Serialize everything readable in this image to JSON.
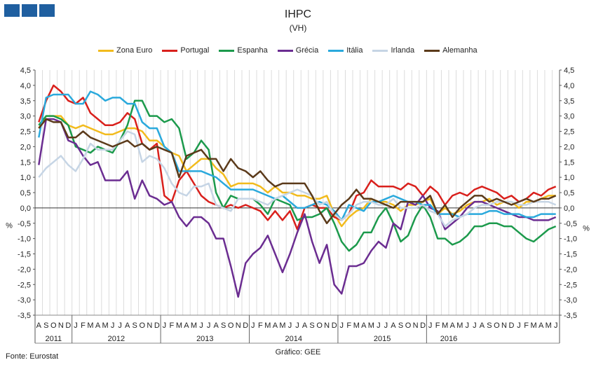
{
  "title": "IHPC",
  "subtitle": "(VH)",
  "source": "Fonte: Eurostat",
  "credit": "Gráfico: GEE",
  "chart_data": {
    "type": "line",
    "yunit": "%",
    "ylim": [
      -3.5,
      4.5
    ],
    "yticks": [
      4.5,
      4.0,
      3.5,
      3.0,
      2.5,
      2.0,
      1.5,
      1.0,
      0.5,
      0.0,
      -0.5,
      -1.0,
      -1.5,
      -2.0,
      -2.5,
      -3.0,
      -3.5
    ],
    "ytick_labels": [
      "4,5",
      "4,0",
      "3,5",
      "3,0",
      "2,5",
      "2,0",
      "1,5",
      "1,0",
      "0,5",
      "0,0",
      "-0,5",
      "-1,0",
      "-1,5",
      "-2,0",
      "-2,5",
      "-3,0",
      "-3,5"
    ],
    "months": [
      "A",
      "S",
      "O",
      "N",
      "D",
      "J",
      "F",
      "M",
      "A",
      "M",
      "J",
      "J",
      "A",
      "S",
      "O",
      "N",
      "D",
      "J",
      "F",
      "M",
      "A",
      "M",
      "J",
      "J",
      "A",
      "S",
      "O",
      "N",
      "D",
      "J",
      "F",
      "M",
      "A",
      "M",
      "J",
      "J",
      "A",
      "S",
      "O",
      "N",
      "D",
      "J",
      "F",
      "M",
      "A",
      "M",
      "J",
      "J",
      "A",
      "S",
      "O",
      "N",
      "D",
      "J",
      "F",
      "M",
      "A",
      "M",
      "J",
      "J",
      "A",
      "S",
      "O",
      "N",
      "D",
      "J",
      "F",
      "M",
      "A",
      "M",
      "J"
    ],
    "years": [
      {
        "label": "2011",
        "start": 0,
        "end": 4
      },
      {
        "label": "2012",
        "start": 5,
        "end": 16
      },
      {
        "label": "2013",
        "start": 17,
        "end": 28
      },
      {
        "label": "2014",
        "start": 29,
        "end": 40
      },
      {
        "label": "2015",
        "start": 41,
        "end": 52
      },
      {
        "label": "2016",
        "start": 53,
        "end": 58
      }
    ],
    "grid": "vertical",
    "series": [
      {
        "name": "Zona Euro",
        "color": "#f2bb1d",
        "values": [
          2.6,
          3.0,
          3.0,
          3.0,
          2.7,
          2.6,
          2.7,
          2.6,
          2.5,
          2.4,
          2.4,
          2.5,
          2.6,
          2.6,
          2.5,
          2.2,
          2.2,
          2.0,
          1.8,
          1.7,
          1.2,
          1.4,
          1.6,
          1.6,
          1.3,
          1.1,
          0.7,
          0.8,
          0.8,
          0.8,
          0.7,
          0.5,
          0.7,
          0.5,
          0.5,
          0.4,
          0.4,
          0.3,
          0.3,
          0.4,
          -0.2,
          -0.6,
          -0.3,
          -0.1,
          0.0,
          0.3,
          0.2,
          0.2,
          0.1,
          -0.1,
          0.1,
          0.1,
          0.2,
          0.3,
          -0.2,
          0.0,
          -0.2,
          -0.1,
          0.1,
          0.2,
          0.2,
          0.3,
          0.1,
          0.2,
          0.2,
          0.0,
          0.2,
          0.2,
          0.3,
          0.4,
          0.4
        ]
      },
      {
        "name": "Portugal",
        "color": "#d9201c",
        "values": [
          2.8,
          3.5,
          4.0,
          3.8,
          3.5,
          3.4,
          3.6,
          3.1,
          2.9,
          2.7,
          2.7,
          2.8,
          3.1,
          2.9,
          2.1,
          1.9,
          2.1,
          0.4,
          0.2,
          0.9,
          1.2,
          0.8,
          0.4,
          0.2,
          0.1,
          0.0,
          0.1,
          0.0,
          0.1,
          0.0,
          -0.1,
          -0.4,
          -0.1,
          -0.4,
          -0.1,
          -0.7,
          0.0,
          0.1,
          0.0,
          0.0,
          -0.3,
          -0.4,
          -0.2,
          0.4,
          0.5,
          0.9,
          0.7,
          0.7,
          0.7,
          0.6,
          0.8,
          0.7,
          0.4,
          0.7,
          0.5,
          0.1,
          0.4,
          0.5,
          0.4,
          0.6,
          0.7,
          0.6,
          0.5,
          0.3,
          0.4,
          0.2,
          0.3,
          0.5,
          0.4,
          0.6,
          0.7
        ]
      },
      {
        "name": "Espanha",
        "color": "#1c9a4c",
        "values": [
          2.7,
          3.0,
          3.0,
          2.9,
          2.7,
          2.0,
          1.9,
          1.8,
          2.0,
          1.9,
          1.8,
          2.2,
          2.7,
          3.5,
          3.5,
          3.0,
          3.0,
          2.8,
          2.9,
          2.6,
          1.6,
          1.8,
          2.2,
          1.9,
          0.5,
          0.0,
          0.4,
          0.3,
          0.3,
          0.3,
          0.1,
          -0.2,
          0.3,
          0.2,
          0.1,
          -0.4,
          -0.3,
          -0.3,
          -0.2,
          0.0,
          -0.5,
          -1.1,
          -1.4,
          -1.2,
          -0.8,
          -0.8,
          -0.3,
          0.0,
          -0.5,
          -1.1,
          -0.9,
          -0.3,
          0.1,
          -0.3,
          -1.0,
          -1.0,
          -1.2,
          -1.1,
          -0.9,
          -0.6,
          -0.6,
          -0.5,
          -0.5,
          -0.6,
          -0.6,
          -0.8,
          -1.0,
          -1.1,
          -0.9,
          -0.7,
          -0.6
        ]
      },
      {
        "name": "Grécia",
        "color": "#6b2d91",
        "values": [
          1.4,
          2.9,
          2.9,
          2.8,
          2.2,
          2.1,
          1.7,
          1.4,
          1.5,
          0.9,
          0.9,
          0.9,
          1.2,
          0.3,
          0.9,
          0.4,
          0.3,
          0.1,
          0.2,
          -0.3,
          -0.6,
          -0.3,
          -0.3,
          -0.5,
          -1.0,
          -1.0,
          -1.9,
          -2.9,
          -1.8,
          -1.5,
          -1.3,
          -0.9,
          -1.5,
          -2.1,
          -1.5,
          -0.8,
          -0.2,
          -1.1,
          -1.8,
          -1.2,
          -2.5,
          -2.8,
          -1.9,
          -1.9,
          -1.8,
          -1.4,
          -1.1,
          -1.3,
          -0.5,
          -0.7,
          0.2,
          0.1,
          0.4,
          0.0,
          -0.1,
          -0.7,
          -0.5,
          -0.3,
          0.0,
          0.2,
          0.2,
          0.1,
          0.0,
          -0.1,
          -0.2,
          -0.3,
          -0.3,
          -0.4,
          -0.4,
          -0.4,
          -0.3
        ]
      },
      {
        "name": "Itália",
        "color": "#2aa9dc",
        "values": [
          2.3,
          3.6,
          3.7,
          3.7,
          3.7,
          3.4,
          3.4,
          3.8,
          3.7,
          3.5,
          3.6,
          3.6,
          3.4,
          3.4,
          2.8,
          2.6,
          2.6,
          2.0,
          1.8,
          1.2,
          1.2,
          1.2,
          1.2,
          1.1,
          1.0,
          0.8,
          0.6,
          0.6,
          0.6,
          0.6,
          0.5,
          0.4,
          0.3,
          0.4,
          0.2,
          0.0,
          0.0,
          0.1,
          0.2,
          0.1,
          -0.1,
          -0.4,
          0.1,
          0.0,
          -0.1,
          0.2,
          0.2,
          0.3,
          0.4,
          0.3,
          0.2,
          0.2,
          0.1,
          0.1,
          -0.2,
          -0.2,
          -0.2,
          -0.3,
          -0.2,
          -0.2,
          -0.2,
          -0.1,
          -0.1,
          -0.2,
          -0.2,
          -0.2,
          -0.3,
          -0.3,
          -0.2,
          -0.2,
          -0.2
        ]
      },
      {
        "name": "Irlanda",
        "color": "#c6d5e5",
        "values": [
          1.0,
          1.3,
          1.5,
          1.7,
          1.4,
          1.2,
          1.6,
          2.1,
          1.9,
          1.9,
          1.9,
          2.2,
          2.5,
          2.4,
          1.5,
          1.7,
          1.6,
          1.3,
          0.8,
          0.5,
          0.4,
          0.7,
          0.7,
          0.8,
          0.1,
          0.0,
          -0.1,
          0.3,
          0.3,
          0.3,
          0.2,
          0.1,
          0.3,
          0.4,
          0.5,
          0.6,
          0.5,
          0.4,
          0.1,
          0.2,
          -0.2,
          -0.4,
          -0.2,
          0.1,
          0.2,
          0.2,
          0.1,
          0.1,
          0.3,
          0.0,
          0.0,
          0.0,
          0.1,
          -0.1,
          -0.2,
          -0.6,
          -0.4,
          -0.3,
          -0.2,
          0.0,
          0.1,
          0.1,
          0.2,
          0.2,
          0.2,
          0.1,
          0.1,
          0.2,
          0.2,
          0.2,
          0.1
        ]
      },
      {
        "name": "Alemanha",
        "color": "#5b3a1a",
        "values": [
          2.6,
          2.9,
          2.8,
          2.8,
          2.3,
          2.3,
          2.5,
          2.3,
          2.2,
          2.1,
          2.0,
          2.1,
          2.2,
          2.0,
          2.1,
          1.9,
          2.0,
          1.9,
          1.8,
          1.0,
          1.7,
          1.8,
          1.9,
          1.6,
          1.6,
          1.2,
          1.6,
          1.3,
          1.2,
          1.0,
          1.2,
          0.9,
          0.7,
          0.8,
          0.8,
          0.8,
          0.8,
          0.4,
          -0.1,
          -0.5,
          -0.2,
          0.1,
          0.3,
          0.6,
          0.3,
          0.3,
          0.2,
          0.1,
          0.0,
          0.2,
          0.2,
          0.2,
          0.2,
          0.4,
          -0.2,
          0.1,
          -0.3,
          0.0,
          0.2,
          0.4,
          0.4,
          0.2,
          0.3,
          0.2,
          0.1,
          0.2,
          0.3,
          0.2,
          0.3,
          0.3,
          0.4
        ]
      }
    ]
  }
}
